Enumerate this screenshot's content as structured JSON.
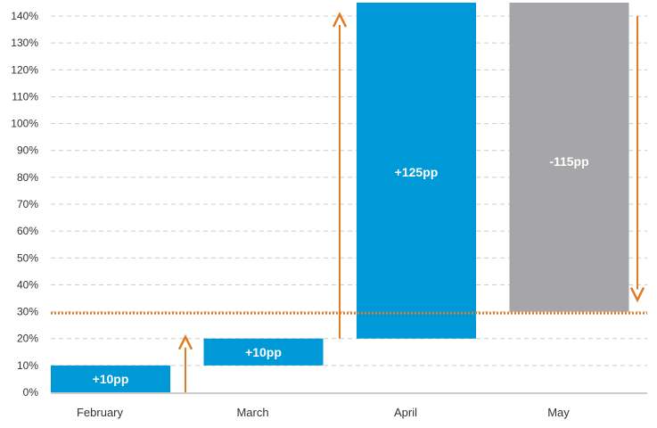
{
  "chart_data": {
    "type": "bar",
    "subtype": "waterfall",
    "categories": [
      "February",
      "March",
      "April",
      "May"
    ],
    "bars": [
      {
        "category": "February",
        "start": 0,
        "end": 10,
        "label": "+10pp",
        "color": "#0099d8"
      },
      {
        "category": "March",
        "start": 10,
        "end": 20,
        "label": "+10pp",
        "color": "#0099d8"
      },
      {
        "category": "April",
        "start": 20,
        "end": 145,
        "label": "+125pp",
        "color": "#0099d8"
      },
      {
        "category": "May",
        "start": 145,
        "end": 30,
        "label": "-115pp",
        "color": "#a6a6a8"
      }
    ],
    "ylim": [
      0,
      145
    ],
    "yticks": [
      "0%",
      "10%",
      "20%",
      "30%",
      "40%",
      "50%",
      "60%",
      "70%",
      "80%",
      "90%",
      "100%",
      "110%",
      "120%",
      "130%",
      "140%"
    ],
    "ytick_values": [
      0,
      10,
      20,
      30,
      40,
      50,
      60,
      70,
      80,
      90,
      100,
      110,
      120,
      130,
      140
    ],
    "reference_line": {
      "value": 29.5,
      "color": "#e07b20",
      "style": "dotted"
    },
    "arrows": [
      {
        "after": "February",
        "from": 0,
        "to": 20,
        "direction": "up"
      },
      {
        "after": "March",
        "from": 20,
        "to": 140,
        "direction": "up"
      },
      {
        "after": "May",
        "from": 140,
        "to": 35,
        "direction": "down"
      }
    ],
    "grid": "horizontal dashed",
    "title": "",
    "xlabel": "",
    "ylabel": ""
  },
  "colors": {
    "positive": "#0099d8",
    "negative": "#a6a6a8",
    "accent": "#e07b20",
    "grid": "#cccccc"
  }
}
